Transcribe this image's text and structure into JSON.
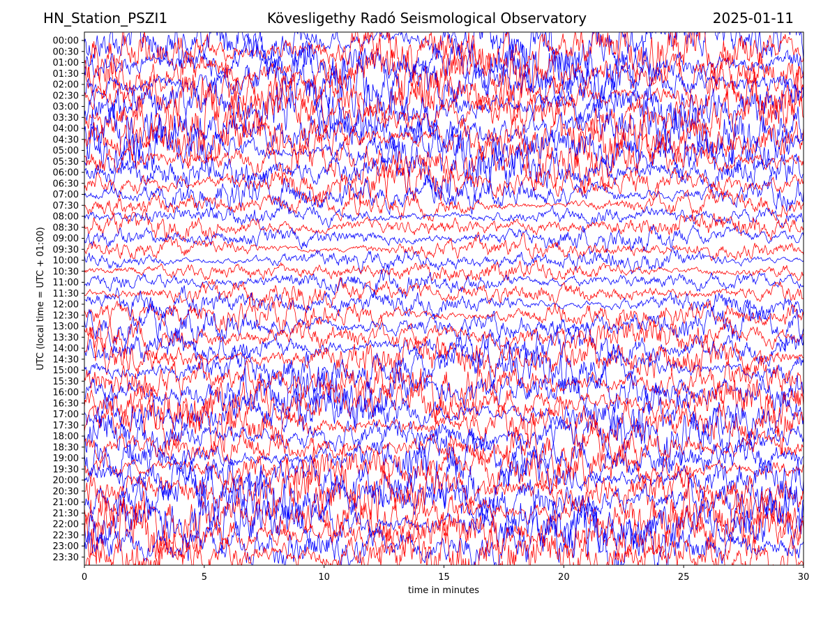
{
  "header": {
    "station": "HN_Station_PSZI1",
    "observatory": "Kövesligethy Radó Seismological Observatory",
    "date": "2025-01-11"
  },
  "chart_data": {
    "type": "line",
    "title": "Kövesligethy Radó Seismological Observatory",
    "xlabel": "time in minutes",
    "ylabel": "UTC (local time = UTC + 01:00)",
    "xlim": [
      0,
      30
    ],
    "x_ticks": [
      "0",
      "5",
      "10",
      "15",
      "20",
      "25",
      "30"
    ],
    "x_tick_values": [
      0,
      5,
      10,
      15,
      20,
      25,
      30
    ],
    "y_ticks": [
      "00:00",
      "00:30",
      "01:00",
      "01:30",
      "02:00",
      "02:30",
      "03:00",
      "03:30",
      "04:00",
      "04:30",
      "05:00",
      "05:30",
      "06:00",
      "06:30",
      "07:00",
      "07:30",
      "08:00",
      "08:30",
      "09:00",
      "09:30",
      "10:00",
      "10:30",
      "11:00",
      "11:30",
      "12:00",
      "12:30",
      "13:00",
      "13:30",
      "14:00",
      "14:30",
      "15:00",
      "15:30",
      "16:00",
      "16:30",
      "17:00",
      "17:30",
      "18:00",
      "18:30",
      "19:00",
      "19:30",
      "20:00",
      "20:30",
      "21:00",
      "21:30",
      "22:00",
      "22:30",
      "23:00",
      "23:30"
    ],
    "trace_colors": [
      "#0000ff",
      "#ff0000"
    ],
    "relative_amplitude": [
      1.0,
      1.0,
      1.0,
      1.0,
      1.0,
      1.0,
      1.0,
      1.0,
      1.0,
      1.0,
      0.95,
      0.9,
      0.85,
      0.65,
      0.6,
      0.4,
      0.35,
      0.4,
      0.4,
      0.35,
      0.35,
      0.35,
      0.4,
      0.45,
      0.45,
      0.5,
      0.55,
      0.6,
      0.65,
      0.75,
      0.8,
      0.85,
      0.9,
      0.85,
      0.85,
      0.8,
      0.75,
      0.7,
      0.75,
      0.85,
      0.95,
      1.0,
      1.0,
      1.0,
      1.0,
      1.0,
      1.0,
      1.0
    ],
    "grid": false,
    "legend": "none"
  }
}
